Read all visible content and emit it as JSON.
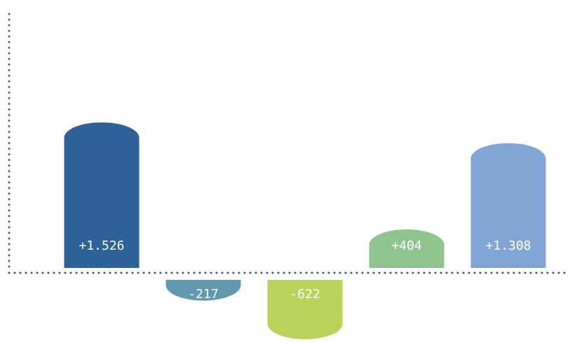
{
  "chart_data": {
    "type": "bar",
    "title": "",
    "xlabel": "",
    "ylabel": "",
    "grid": false,
    "legend": "none",
    "values": [
      1526,
      -217,
      -622,
      404,
      1308
    ],
    "labels": [
      "+1.526",
      "-217",
      "-622",
      "+404",
      "+1.308"
    ],
    "colors": [
      "#2f6199",
      "#6199b0",
      "#b7d35a",
      "#8fc48e",
      "#83a5d6"
    ],
    "axis_color": "#2f5d95"
  }
}
